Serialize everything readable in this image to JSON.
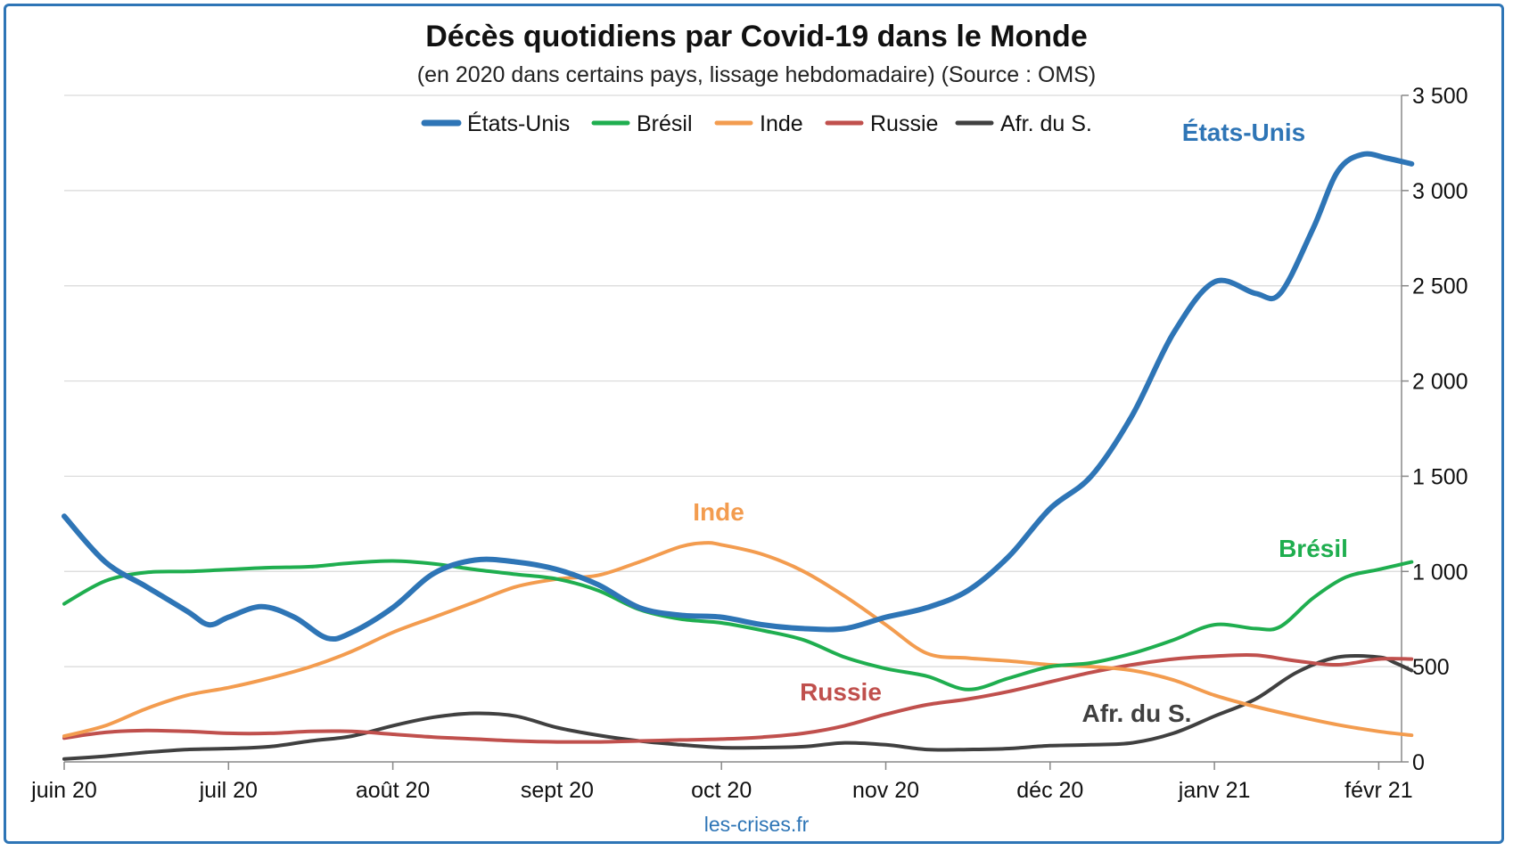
{
  "header": {
    "title": "Décès quotidiens par Covid-19 dans le Monde",
    "subtitle": "(en 2020 dans certains pays, lissage hebdomadaire) (Source : OMS)"
  },
  "footer": {
    "source": "les-crises.fr"
  },
  "chart_data": {
    "type": "line",
    "title": "Décès quotidiens par Covid-19 dans le Monde",
    "subtitle": "(en 2020 dans certains pays, lissage hebdomadaire) (Source : OMS)",
    "xlabel": "",
    "ylabel": "",
    "y_axis_side": "right",
    "ylim": [
      0,
      3500
    ],
    "y_ticks": [
      0,
      500,
      1000,
      1500,
      2000,
      2500,
      3000,
      3500
    ],
    "y_tick_labels": [
      "0",
      "500",
      "1 000",
      "1 500",
      "2 000",
      "2 500",
      "3 000",
      "3 500"
    ],
    "x_tick_labels": [
      "juin 20",
      "juil 20",
      "août 20",
      "sept 20",
      "oct 20",
      "nov 20",
      "déc 20",
      "janv 21",
      "févr 21"
    ],
    "x_tick_months": [
      0,
      1,
      2,
      3,
      4,
      5,
      6,
      7,
      8
    ],
    "xlim_months": [
      0,
      8.2
    ],
    "grid": true,
    "legend_position": "top",
    "colors": {
      "États-Unis": "#2e75b6",
      "Brésil": "#1fae4f",
      "Inde": "#f39c4f",
      "Russie": "#c0504d",
      "Afr. du S.": "#404040",
      "axis": "#888888",
      "grid": "#d9d9d9",
      "frame": "#2e75b6"
    },
    "series": [
      {
        "name": "États-Unis",
        "label": "États-Unis",
        "points": [
          [
            0.0,
            1290
          ],
          [
            0.25,
            1050
          ],
          [
            0.5,
            920
          ],
          [
            0.75,
            790
          ],
          [
            0.88,
            720
          ],
          [
            1.0,
            760
          ],
          [
            1.2,
            815
          ],
          [
            1.4,
            760
          ],
          [
            1.6,
            650
          ],
          [
            1.75,
            680
          ],
          [
            2.0,
            810
          ],
          [
            2.25,
            990
          ],
          [
            2.5,
            1060
          ],
          [
            2.75,
            1050
          ],
          [
            3.0,
            1010
          ],
          [
            3.25,
            930
          ],
          [
            3.5,
            810
          ],
          [
            3.75,
            770
          ],
          [
            4.0,
            760
          ],
          [
            4.25,
            720
          ],
          [
            4.5,
            700
          ],
          [
            4.75,
            700
          ],
          [
            5.0,
            760
          ],
          [
            5.25,
            810
          ],
          [
            5.5,
            900
          ],
          [
            5.75,
            1080
          ],
          [
            6.0,
            1330
          ],
          [
            6.25,
            1500
          ],
          [
            6.5,
            1820
          ],
          [
            6.75,
            2250
          ],
          [
            7.0,
            2520
          ],
          [
            7.25,
            2460
          ],
          [
            7.4,
            2460
          ],
          [
            7.6,
            2800
          ],
          [
            7.75,
            3100
          ],
          [
            7.9,
            3190
          ],
          [
            8.05,
            3170
          ],
          [
            8.2,
            3140
          ]
        ]
      },
      {
        "name": "Brésil",
        "label": "Brésil",
        "points": [
          [
            0.0,
            830
          ],
          [
            0.25,
            950
          ],
          [
            0.5,
            995
          ],
          [
            0.75,
            1000
          ],
          [
            1.0,
            1010
          ],
          [
            1.25,
            1020
          ],
          [
            1.5,
            1025
          ],
          [
            1.75,
            1045
          ],
          [
            2.0,
            1055
          ],
          [
            2.25,
            1040
          ],
          [
            2.5,
            1010
          ],
          [
            2.75,
            985
          ],
          [
            3.0,
            960
          ],
          [
            3.25,
            900
          ],
          [
            3.5,
            800
          ],
          [
            3.75,
            750
          ],
          [
            4.0,
            730
          ],
          [
            4.25,
            690
          ],
          [
            4.5,
            640
          ],
          [
            4.75,
            550
          ],
          [
            5.0,
            490
          ],
          [
            5.25,
            450
          ],
          [
            5.5,
            380
          ],
          [
            5.75,
            440
          ],
          [
            6.0,
            500
          ],
          [
            6.25,
            520
          ],
          [
            6.5,
            570
          ],
          [
            6.75,
            640
          ],
          [
            7.0,
            720
          ],
          [
            7.25,
            700
          ],
          [
            7.4,
            710
          ],
          [
            7.6,
            860
          ],
          [
            7.8,
            970
          ],
          [
            8.0,
            1010
          ],
          [
            8.2,
            1050
          ]
        ]
      },
      {
        "name": "Inde",
        "label": "Inde",
        "points": [
          [
            0.0,
            135
          ],
          [
            0.25,
            190
          ],
          [
            0.5,
            280
          ],
          [
            0.75,
            350
          ],
          [
            1.0,
            390
          ],
          [
            1.25,
            440
          ],
          [
            1.5,
            500
          ],
          [
            1.75,
            580
          ],
          [
            2.0,
            680
          ],
          [
            2.25,
            760
          ],
          [
            2.5,
            840
          ],
          [
            2.75,
            920
          ],
          [
            3.0,
            960
          ],
          [
            3.25,
            980
          ],
          [
            3.5,
            1050
          ],
          [
            3.75,
            1130
          ],
          [
            3.9,
            1150
          ],
          [
            4.0,
            1140
          ],
          [
            4.25,
            1090
          ],
          [
            4.5,
            1000
          ],
          [
            4.75,
            870
          ],
          [
            5.0,
            720
          ],
          [
            5.25,
            570
          ],
          [
            5.5,
            545
          ],
          [
            5.75,
            530
          ],
          [
            6.0,
            510
          ],
          [
            6.25,
            500
          ],
          [
            6.5,
            480
          ],
          [
            6.75,
            430
          ],
          [
            7.0,
            350
          ],
          [
            7.25,
            290
          ],
          [
            7.5,
            240
          ],
          [
            7.75,
            195
          ],
          [
            8.0,
            160
          ],
          [
            8.2,
            140
          ]
        ]
      },
      {
        "name": "Russie",
        "label": "Russie",
        "points": [
          [
            0.0,
            125
          ],
          [
            0.25,
            155
          ],
          [
            0.5,
            165
          ],
          [
            0.75,
            160
          ],
          [
            1.0,
            150
          ],
          [
            1.25,
            150
          ],
          [
            1.5,
            160
          ],
          [
            1.75,
            160
          ],
          [
            2.0,
            145
          ],
          [
            2.25,
            130
          ],
          [
            2.5,
            120
          ],
          [
            2.75,
            110
          ],
          [
            3.0,
            105
          ],
          [
            3.25,
            105
          ],
          [
            3.5,
            110
          ],
          [
            3.75,
            115
          ],
          [
            4.0,
            120
          ],
          [
            4.25,
            130
          ],
          [
            4.5,
            150
          ],
          [
            4.75,
            190
          ],
          [
            5.0,
            250
          ],
          [
            5.25,
            300
          ],
          [
            5.5,
            330
          ],
          [
            5.75,
            370
          ],
          [
            6.0,
            420
          ],
          [
            6.25,
            470
          ],
          [
            6.5,
            510
          ],
          [
            6.75,
            540
          ],
          [
            7.0,
            555
          ],
          [
            7.25,
            560
          ],
          [
            7.5,
            530
          ],
          [
            7.75,
            510
          ],
          [
            8.0,
            540
          ],
          [
            8.2,
            540
          ]
        ]
      },
      {
        "name": "Afr. du S.",
        "label": "Afr. du S.",
        "points": [
          [
            0.0,
            15
          ],
          [
            0.25,
            30
          ],
          [
            0.5,
            50
          ],
          [
            0.75,
            65
          ],
          [
            1.0,
            70
          ],
          [
            1.25,
            80
          ],
          [
            1.5,
            110
          ],
          [
            1.75,
            135
          ],
          [
            2.0,
            190
          ],
          [
            2.25,
            235
          ],
          [
            2.5,
            255
          ],
          [
            2.75,
            240
          ],
          [
            3.0,
            180
          ],
          [
            3.25,
            140
          ],
          [
            3.5,
            110
          ],
          [
            3.75,
            90
          ],
          [
            4.0,
            75
          ],
          [
            4.25,
            75
          ],
          [
            4.5,
            80
          ],
          [
            4.75,
            100
          ],
          [
            5.0,
            90
          ],
          [
            5.25,
            65
          ],
          [
            5.5,
            65
          ],
          [
            5.75,
            70
          ],
          [
            6.0,
            85
          ],
          [
            6.25,
            90
          ],
          [
            6.5,
            100
          ],
          [
            6.75,
            150
          ],
          [
            7.0,
            240
          ],
          [
            7.25,
            330
          ],
          [
            7.5,
            470
          ],
          [
            7.75,
            550
          ],
          [
            8.0,
            550
          ],
          [
            8.1,
            520
          ],
          [
            8.2,
            480
          ]
        ]
      }
    ]
  }
}
